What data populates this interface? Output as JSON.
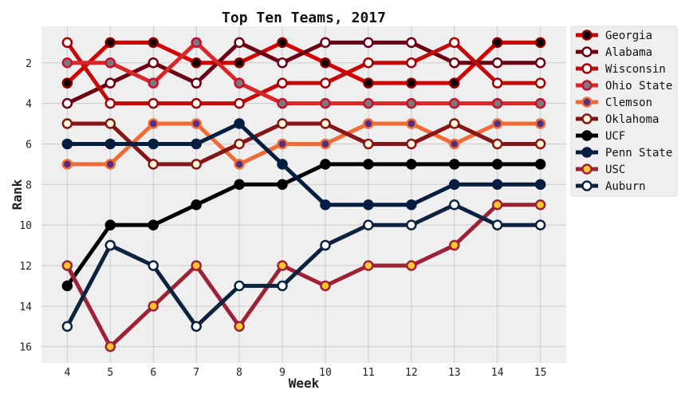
{
  "chart_data": {
    "type": "line",
    "title": "Top Ten Teams, 2017",
    "xlabel": "Week",
    "ylabel": "Rank",
    "x": [
      4,
      5,
      6,
      7,
      8,
      9,
      10,
      11,
      12,
      13,
      14,
      15
    ],
    "xlim": [
      3.4,
      15.6
    ],
    "ylim": [
      16.8,
      0.2
    ],
    "y_ticks": [
      2,
      4,
      6,
      8,
      10,
      12,
      14,
      16
    ],
    "y_inverted": true,
    "grid": true,
    "legend_position": "outside-right",
    "background": "#efefef",
    "gridcolor": "#cbcbcb",
    "series": [
      {
        "name": "Georgia",
        "line_color": "#d40000",
        "marker_face": "#000000",
        "marker_edge": "#8a0000",
        "values": [
          3,
          1,
          1,
          2,
          2,
          1,
          2,
          3,
          3,
          3,
          1,
          1
        ]
      },
      {
        "name": "Alabama",
        "line_color": "#6b0015",
        "marker_face": "#ffffff",
        "marker_edge": "#6b0015",
        "values": [
          4,
          3,
          2,
          3,
          1,
          2,
          1,
          1,
          1,
          2,
          2,
          2
        ]
      },
      {
        "name": "Wisconsin",
        "line_color": "#c10a0a",
        "marker_face": "#ffffff",
        "marker_edge": "#a00000",
        "values": [
          1,
          4,
          4,
          4,
          4,
          3,
          3,
          2,
          2,
          1,
          3,
          3
        ]
      },
      {
        "name": "Ohio State",
        "line_color": "#d8262a",
        "marker_face": "#7a7a7a",
        "marker_edge": "#c8102e",
        "values": [
          2,
          2,
          3,
          1,
          3,
          4,
          4,
          4,
          4,
          4,
          4,
          4
        ]
      },
      {
        "name": "Clemson",
        "line_color": "#f26a36",
        "marker_face": "#522d80",
        "marker_edge": "#f26a36",
        "values": [
          7,
          7,
          5,
          5,
          7,
          6,
          6,
          5,
          5,
          6,
          5,
          5
        ]
      },
      {
        "name": "Oklahoma",
        "line_color": "#841617",
        "marker_face": "#fdf9d8",
        "marker_edge": "#841617",
        "values": [
          5,
          5,
          7,
          7,
          6,
          5,
          5,
          6,
          6,
          5,
          6,
          6
        ]
      },
      {
        "name": "UCF",
        "line_color": "#000000",
        "marker_face": "#000000",
        "marker_edge": "#000000",
        "values": [
          13,
          10,
          10,
          9,
          8,
          8,
          7,
          7,
          7,
          7,
          7,
          7
        ]
      },
      {
        "name": "Penn State",
        "line_color": "#041e42",
        "marker_face": "#041e42",
        "marker_edge": "#041e42",
        "values": [
          6,
          6,
          6,
          6,
          5,
          7,
          9,
          9,
          9,
          8,
          8,
          8
        ]
      },
      {
        "name": "USC",
        "line_color": "#9d2235",
        "marker_face": "#ffc72c",
        "marker_edge": "#9d2235",
        "values": [
          12,
          16,
          14,
          12,
          15,
          12,
          13,
          12,
          12,
          11,
          9,
          9
        ]
      },
      {
        "name": "Auburn",
        "line_color": "#0c2340",
        "marker_face": "#ffffff",
        "marker_edge": "#0c2340",
        "values": [
          15,
          11,
          12,
          15,
          13,
          13,
          11,
          10,
          10,
          9,
          10,
          10
        ]
      }
    ]
  }
}
